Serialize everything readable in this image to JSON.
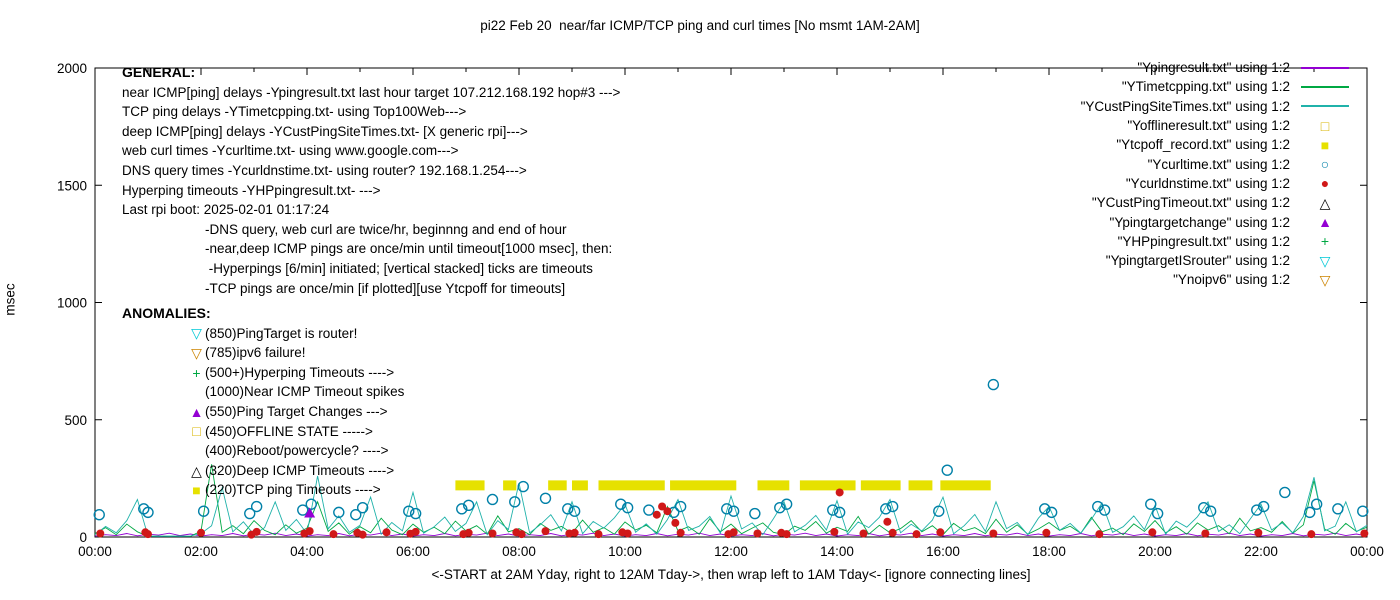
{
  "title": "pi22 Feb 20  near/far ICMP/TCP ping and curl times [No msmt 1AM-2AM]",
  "ylabel": "msec",
  "xlabel": "<-START at 2AM Yday, right to 12AM Tday->, then wrap left to 1AM Tday<- [ignore connecting lines]",
  "general": {
    "heading": "GENERAL:",
    "lines": [
      "near ICMP[ping] delays -Ypingresult.txt last hour target 107.212.168.192 hop#3 --->",
      "TCP ping delays -YTimetcpping.txt- using Top100Web--->",
      "deep ICMP[ping] delays -YCustPingSiteTimes.txt- [X generic rpi]--->",
      "web curl times -Ycurltime.txt- using www.google.com--->",
      "DNS query times -Ycurldnstime.txt- using router? 192.168.1.254--->",
      "Hyperping timeouts -YHPpingresult.txt- --->",
      "Last rpi boot: 2025-02-01 01:17:24"
    ],
    "indented_lines": [
      "-DNS query, web curl are twice/hr, beginnng and end of hour",
      "-near,deep ICMP pings are once/min until timeout[1000 msec], then:",
      " -Hyperpings [6/min] initiated; [vertical stacked] ticks are timeouts",
      "-TCP pings are once/min [if plotted][use Ytcpoff for timeouts]"
    ]
  },
  "anomalies": {
    "heading": "ANOMALIES:",
    "items": [
      {
        "icon": "triangle-down-open-icon",
        "glyph": "▽",
        "color": "#00c8d7",
        "text": "(850)PingTarget is router!"
      },
      {
        "icon": "triangle-down-open-icon",
        "glyph": "▽",
        "color": "#cc8400",
        "text": "(785)ipv6 failure!"
      },
      {
        "icon": "plus-icon",
        "glyph": "+",
        "color": "#00a843",
        "text": "(500+)Hyperping Timeouts ---->"
      },
      {
        "icon": "none",
        "glyph": "",
        "color": "#000000",
        "text": "(1000)Near ICMP Timeout spikes"
      },
      {
        "icon": "triangle-filled-icon",
        "glyph": "▲",
        "color": "#9400d3",
        "text": "(550)Ping Target Changes --->"
      },
      {
        "icon": "square-open-icon",
        "glyph": "□",
        "color": "#d8b400",
        "text": "(450)OFFLINE STATE ----->"
      },
      {
        "icon": "none",
        "glyph": "",
        "color": "#000000",
        "text": "(400)Reboot/powercycle? ---->"
      },
      {
        "icon": "triangle-open-icon",
        "glyph": "△",
        "color": "#000000",
        "text": "(320)Deep ICMP Timeouts ---->"
      },
      {
        "icon": "square-filled-icon",
        "glyph": "■",
        "color": "#e6e100",
        "text": "(220)TCP ping Timeouts ---->"
      }
    ]
  },
  "legend": [
    {
      "label": "\"Ypingresult.txt\" using 1:2",
      "type": "line",
      "glyph": "",
      "color": "#9400d3"
    },
    {
      "label": "\"YTimetcpping.txt\" using 1:2",
      "type": "line",
      "glyph": "",
      "color": "#00a843"
    },
    {
      "label": "\"YCustPingSiteTimes.txt\" using 1:2",
      "type": "line",
      "glyph": "",
      "color": "#20b2aa"
    },
    {
      "label": "\"Yofflineresult.txt\" using 1:2",
      "type": "point",
      "glyph": "□",
      "color": "#d8b400"
    },
    {
      "label": "\"Ytcpoff_record.txt\" using 1:2",
      "type": "point",
      "glyph": "■",
      "color": "#e6e100"
    },
    {
      "label": "\"Ycurltime.txt\" using 1:2",
      "type": "point",
      "glyph": "○",
      "color": "#0080a8"
    },
    {
      "label": "\"Ycurldnstime.txt\" using 1:2",
      "type": "point",
      "glyph": "●",
      "color": "#d01818"
    },
    {
      "label": "\"YCustPingTimeout.txt\" using 1:2",
      "type": "point",
      "glyph": "△",
      "color": "#000000"
    },
    {
      "label": "\"Ypingtargetchange\" using 1:2",
      "type": "point",
      "glyph": "▲",
      "color": "#9400d3"
    },
    {
      "label": "\"YHPpingresult.txt\" using 1:2",
      "type": "point",
      "glyph": "+",
      "color": "#00a843"
    },
    {
      "label": "\"YpingtargetISrouter\" using 1:2",
      "type": "point",
      "glyph": "▽",
      "color": "#00c8d7"
    },
    {
      "label": "\"Ynoipv6\" using 1:2",
      "type": "point",
      "glyph": "▽",
      "color": "#cc8400"
    }
  ],
  "axes": {
    "y_ticks": [
      0,
      500,
      1000,
      1500,
      2000
    ],
    "x_ticks": [
      "00:00",
      "02:00",
      "04:00",
      "06:00",
      "08:00",
      "10:00",
      "12:00",
      "14:00",
      "16:00",
      "18:00",
      "20:00",
      "22:00",
      "00:00"
    ],
    "y_range": [
      0,
      2000
    ],
    "x_range_hours": [
      0,
      24
    ]
  },
  "chart_data": {
    "type": "line",
    "title": "pi22 Feb 20  near/far ICMP/TCP ping and curl times [No msmt 1AM-2AM]",
    "xlabel": "<-START at 2AM Yday, right to 12AM Tday->, then wrap left to 1AM Tday<- [ignore connecting lines]",
    "ylabel": "msec",
    "x_unit": "hours",
    "x_range": [
      0,
      24
    ],
    "y_range": [
      0,
      2000
    ],
    "grid": false,
    "legend_position": "top-right-outside",
    "series": [
      {
        "name": "Ypingresult.txt",
        "style": "line",
        "color": "#9400d3",
        "step_hours": 0.2,
        "values": [
          4,
          10,
          6,
          15,
          5,
          12,
          8,
          16,
          6,
          13,
          4,
          10,
          6,
          15,
          5,
          12,
          8,
          16,
          6,
          13,
          4,
          10,
          6,
          15,
          5,
          12,
          8,
          16,
          6,
          13,
          4,
          10,
          6,
          15,
          5,
          12,
          8,
          16,
          6,
          13,
          4,
          10,
          6,
          15,
          5,
          12,
          8,
          16,
          6,
          13,
          4,
          10,
          6,
          15,
          5,
          12,
          8,
          16,
          6,
          13,
          4,
          10,
          6,
          15,
          5,
          12,
          8,
          16,
          6,
          13,
          4,
          10,
          6,
          15,
          5,
          12,
          8,
          16,
          6,
          13,
          4,
          10,
          6,
          15,
          5,
          12,
          8,
          16,
          6,
          13,
          4,
          10,
          6,
          15,
          5,
          12,
          8,
          16,
          6,
          13,
          4,
          10,
          6,
          15,
          5,
          12,
          8,
          16,
          6,
          13,
          4,
          10,
          6,
          15,
          5,
          12,
          8,
          16,
          6,
          13,
          4
        ]
      },
      {
        "name": "YTimetcpping.txt",
        "style": "line",
        "color": "#00a843",
        "step_hours": 0.2,
        "values": [
          15,
          40,
          10,
          55,
          22,
          3,
          4,
          3,
          4,
          3,
          25,
          310,
          20,
          48,
          14,
          70,
          28,
          10,
          52,
          16,
          38,
          150,
          24,
          60,
          12,
          44,
          18,
          80,
          30,
          10,
          55,
          20,
          42,
          14,
          68,
          26,
          48,
          12,
          90,
          22,
          36,
          10,
          58,
          28,
          45,
          16,
          72,
          20,
          40,
          12,
          64,
          30,
          50,
          18,
          130,
          26,
          44,
          12,
          78,
          22,
          55,
          14,
          38,
          60,
          20,
          10,
          46,
          28,
          66,
          16,
          42,
          24,
          88,
          12,
          50,
          18,
          36,
          70,
          22,
          48,
          10,
          58,
          26,
          40,
          14,
          76,
          20,
          52,
          12,
          34,
          62,
          28,
          46,
          16,
          84,
          22,
          38,
          10,
          56,
          24,
          70,
          18,
          44,
          12,
          60,
          30,
          48,
          14,
          80,
          26,
          40,
          20,
          66,
          16,
          52,
          240,
          34,
          12,
          58,
          24,
          42
        ]
      },
      {
        "name": "YCustPingSiteTimes.txt",
        "style": "line",
        "color": "#20b2aa",
        "step_hours": 0.2,
        "values": [
          10,
          45,
          18,
          70,
          160,
          4,
          3,
          4,
          3,
          4,
          15,
          48,
          210,
          22,
          65,
          10,
          40,
          150,
          28,
          75,
          14,
          260,
          35,
          90,
          20,
          50,
          170,
          12,
          62,
          26,
          190,
          16,
          44,
          85,
          24,
          58,
          150,
          10,
          70,
          32,
          230,
          18,
          52,
          95,
          26,
          150,
          14,
          66,
          38,
          82,
          140,
          20,
          56,
          12,
          74,
          160,
          28,
          46,
          88,
          16,
          175,
          34,
          60,
          10,
          78,
          150,
          22,
          50,
          92,
          30,
          155,
          12,
          64,
          40,
          84,
          160,
          18,
          54,
          26,
          72,
          170,
          14,
          48,
          96,
          24,
          150,
          36,
          62,
          10,
          80,
          130,
          28,
          58,
          16,
          76,
          145,
          20,
          44,
          90,
          32,
          135,
          12,
          68,
          42,
          86,
          150,
          24,
          52,
          14,
          78,
          140,
          30,
          60,
          18,
          88,
          255,
          26,
          46,
          150,
          22,
          50
        ]
      },
      {
        "name": "Ytcpoff_record.txt",
        "style": "bar-segments",
        "color": "#e6e100",
        "y": 220,
        "segments": [
          [
            6.8,
            7.35
          ],
          [
            7.7,
            7.95
          ],
          [
            8.55,
            8.9
          ],
          [
            9.0,
            9.3
          ],
          [
            9.5,
            10.75
          ],
          [
            10.85,
            12.1
          ],
          [
            12.5,
            13.1
          ],
          [
            13.3,
            14.35
          ],
          [
            14.45,
            15.2
          ],
          [
            15.35,
            15.8
          ],
          [
            15.95,
            16.9
          ]
        ]
      },
      {
        "name": "Ycurltime.txt",
        "style": "open-circle",
        "color": "#0080a8",
        "points": [
          [
            0.08,
            95
          ],
          [
            0.92,
            120
          ],
          [
            1.0,
            105
          ],
          [
            2.05,
            110
          ],
          [
            2.92,
            100
          ],
          [
            3.05,
            130
          ],
          [
            3.92,
            115
          ],
          [
            4.08,
            140
          ],
          [
            4.6,
            105
          ],
          [
            4.92,
            95
          ],
          [
            5.05,
            125
          ],
          [
            5.92,
            110
          ],
          [
            6.05,
            100
          ],
          [
            6.92,
            120
          ],
          [
            7.05,
            135
          ],
          [
            7.5,
            160
          ],
          [
            7.92,
            150
          ],
          [
            8.08,
            215
          ],
          [
            8.5,
            165
          ],
          [
            8.92,
            120
          ],
          [
            9.05,
            110
          ],
          [
            9.92,
            140
          ],
          [
            10.05,
            125
          ],
          [
            10.45,
            115
          ],
          [
            10.92,
            105
          ],
          [
            11.05,
            130
          ],
          [
            11.92,
            120
          ],
          [
            12.05,
            110
          ],
          [
            12.45,
            100
          ],
          [
            12.92,
            125
          ],
          [
            13.05,
            140
          ],
          [
            13.92,
            115
          ],
          [
            14.05,
            105
          ],
          [
            14.92,
            120
          ],
          [
            15.05,
            130
          ],
          [
            15.92,
            110
          ],
          [
            16.08,
            285
          ],
          [
            16.95,
            650
          ],
          [
            17.92,
            120
          ],
          [
            18.05,
            105
          ],
          [
            18.92,
            130
          ],
          [
            19.05,
            115
          ],
          [
            19.92,
            140
          ],
          [
            20.05,
            100
          ],
          [
            20.92,
            125
          ],
          [
            21.05,
            110
          ],
          [
            21.92,
            115
          ],
          [
            22.05,
            130
          ],
          [
            22.45,
            190
          ],
          [
            22.92,
            105
          ],
          [
            23.05,
            140
          ],
          [
            23.45,
            120
          ],
          [
            23.92,
            110
          ]
        ]
      },
      {
        "name": "Ycurldnstime.txt",
        "style": "filled-circle",
        "color": "#d01818",
        "points": [
          [
            0.1,
            15
          ],
          [
            0.95,
            20
          ],
          [
            1.0,
            12
          ],
          [
            2.0,
            18
          ],
          [
            2.95,
            10
          ],
          [
            3.05,
            22
          ],
          [
            3.95,
            15
          ],
          [
            4.05,
            25
          ],
          [
            4.5,
            12
          ],
          [
            4.95,
            18
          ],
          [
            5.05,
            10
          ],
          [
            5.5,
            20
          ],
          [
            5.95,
            14
          ],
          [
            6.05,
            22
          ],
          [
            6.95,
            12
          ],
          [
            7.05,
            18
          ],
          [
            7.5,
            15
          ],
          [
            7.95,
            20
          ],
          [
            8.05,
            12
          ],
          [
            8.5,
            25
          ],
          [
            8.95,
            15
          ],
          [
            9.05,
            18
          ],
          [
            9.5,
            12
          ],
          [
            9.95,
            20
          ],
          [
            10.05,
            15
          ],
          [
            10.6,
            95
          ],
          [
            10.7,
            130
          ],
          [
            10.8,
            110
          ],
          [
            10.95,
            60
          ],
          [
            11.05,
            18
          ],
          [
            11.95,
            12
          ],
          [
            12.05,
            20
          ],
          [
            12.5,
            15
          ],
          [
            12.95,
            18
          ],
          [
            13.05,
            12
          ],
          [
            13.95,
            22
          ],
          [
            14.05,
            190
          ],
          [
            14.5,
            15
          ],
          [
            14.95,
            65
          ],
          [
            15.05,
            18
          ],
          [
            15.5,
            12
          ],
          [
            15.95,
            20
          ],
          [
            16.95,
            15
          ],
          [
            17.95,
            18
          ],
          [
            18.95,
            12
          ],
          [
            19.95,
            20
          ],
          [
            20.95,
            15
          ],
          [
            21.95,
            18
          ],
          [
            22.95,
            12
          ],
          [
            23.95,
            15
          ]
        ]
      },
      {
        "name": "Ypingtargetchange",
        "style": "filled-triangle",
        "color": "#9400d3",
        "points": [
          [
            4.05,
            100
          ]
        ]
      },
      {
        "name": "YHPpingresult.txt",
        "style": "plus",
        "color": "#00a843",
        "points": []
      },
      {
        "name": "YCustPingTimeout.txt",
        "style": "open-triangle",
        "color": "#000000",
        "points": []
      },
      {
        "name": "Yofflineresult.txt",
        "style": "open-square",
        "color": "#d8b400",
        "points": []
      },
      {
        "name": "YpingtargetISrouter",
        "style": "open-triangle-down",
        "color": "#00c8d7",
        "points": []
      },
      {
        "name": "Ynoipv6",
        "style": "open-triangle-down",
        "color": "#cc8400",
        "points": []
      }
    ]
  }
}
